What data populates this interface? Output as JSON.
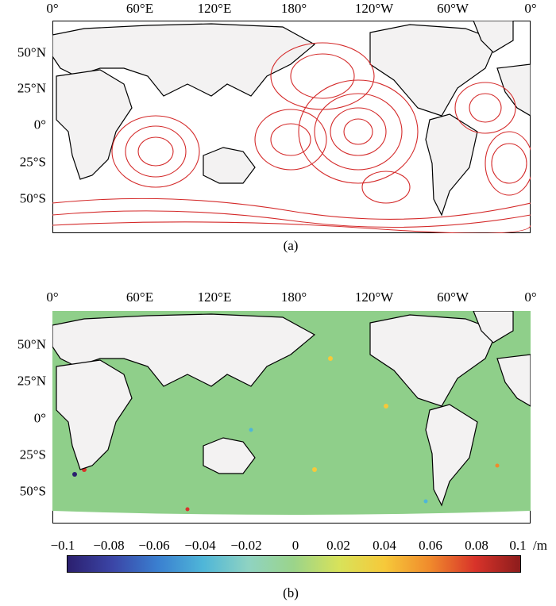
{
  "map_a": {
    "label": "(a)",
    "lon_ticks": [
      "0°",
      "60°E",
      "120°E",
      "180°",
      "120°W",
      "60°W",
      "0°"
    ],
    "lat_ticks": [
      "50°N",
      "25°N",
      "0°",
      "25°S",
      "50°S"
    ],
    "land_color": "#f3f2f2",
    "contour_color": "#d42a2a",
    "coast_color": "#000000"
  },
  "map_b": {
    "label": "(b)",
    "lon_ticks": [
      "0°",
      "60°E",
      "120°E",
      "180°",
      "120°W",
      "60°W",
      "0°"
    ],
    "lat_ticks": [
      "50°N",
      "25°N",
      "0°",
      "25°S",
      "50°S"
    ],
    "ocean_color": "#8fcf8a",
    "land_color": "#f3f2f2",
    "coast_color": "#000000"
  },
  "colorbar": {
    "labels": [
      "−0.1",
      "−0.08",
      "−0.06",
      "−0.04",
      "−0.02",
      "0",
      "0.02",
      "0.04",
      "0.06",
      "0.08",
      "0.1"
    ],
    "unit": "/m",
    "colors": [
      "#2b1f6e",
      "#3b45a6",
      "#3a7fd0",
      "#4fb6d8",
      "#8fd3c2",
      "#9bd48a",
      "#d8e25a",
      "#f6c93a",
      "#f08a2c",
      "#d8332a",
      "#8c1c1c"
    ]
  }
}
